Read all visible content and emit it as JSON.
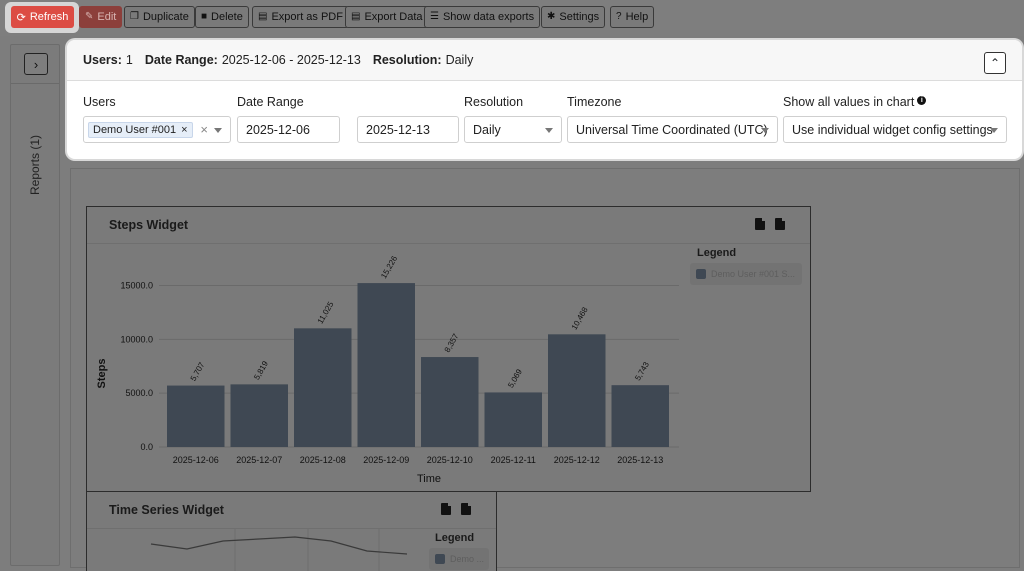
{
  "toolbar": {
    "refresh": "Refresh",
    "edit": "Edit",
    "duplicate": "Duplicate",
    "delete": "Delete",
    "export_pdf": "Export as PDF",
    "export_data": "Export Data",
    "show_exports": "Show data exports",
    "settings": "Settings",
    "help": "Help"
  },
  "side": {
    "label": "Reports (1)"
  },
  "filter": {
    "summary": {
      "users_label": "Users:",
      "users_value": "1",
      "range_label": "Date Range:",
      "range_value": "2025-12-06 - 2025-12-13",
      "resolution_label": "Resolution:",
      "resolution_value": "Daily"
    },
    "labels": {
      "users": "Users",
      "date_range": "Date Range",
      "resolution": "Resolution",
      "timezone": "Timezone",
      "show_all": "Show all values in chart"
    },
    "users_chip": "Demo User #001",
    "date_from": "2025-12-06",
    "date_to": "2025-12-13",
    "resolution": "Daily",
    "timezone": "Universal Time Coordinated (UTC)",
    "show_all": "Use individual widget config settings"
  },
  "widget1": {
    "title": "Steps Widget",
    "legend_title": "Legend",
    "legend_item": "Demo User #001 S..."
  },
  "widget2": {
    "title": "Time Series Widget",
    "legend_title": "Legend",
    "legend_item": "Demo ..."
  },
  "chart_data": [
    {
      "type": "bar",
      "title": "Steps Widget",
      "xlabel": "Time",
      "ylabel": "Steps",
      "categories": [
        "2025-12-06",
        "2025-12-07",
        "2025-12-08",
        "2025-12-09",
        "2025-12-10",
        "2025-12-11",
        "2025-12-12",
        "2025-12-13"
      ],
      "series": [
        {
          "name": "Demo User #001 S...",
          "values": [
            5707,
            5819,
            11025,
            15226,
            8357,
            5069,
            10468,
            5743
          ]
        }
      ],
      "labels": [
        "5,707",
        "5,819",
        "11,025",
        "15,226",
        "8,357",
        "5,069",
        "10,468",
        "5,743"
      ],
      "yticks": [
        "0.0",
        "5000.0",
        "10000.0",
        "15000.0"
      ],
      "ylim": [
        0,
        17000
      ],
      "grid": true,
      "legend": "right",
      "color": "#3f4853"
    }
  ]
}
